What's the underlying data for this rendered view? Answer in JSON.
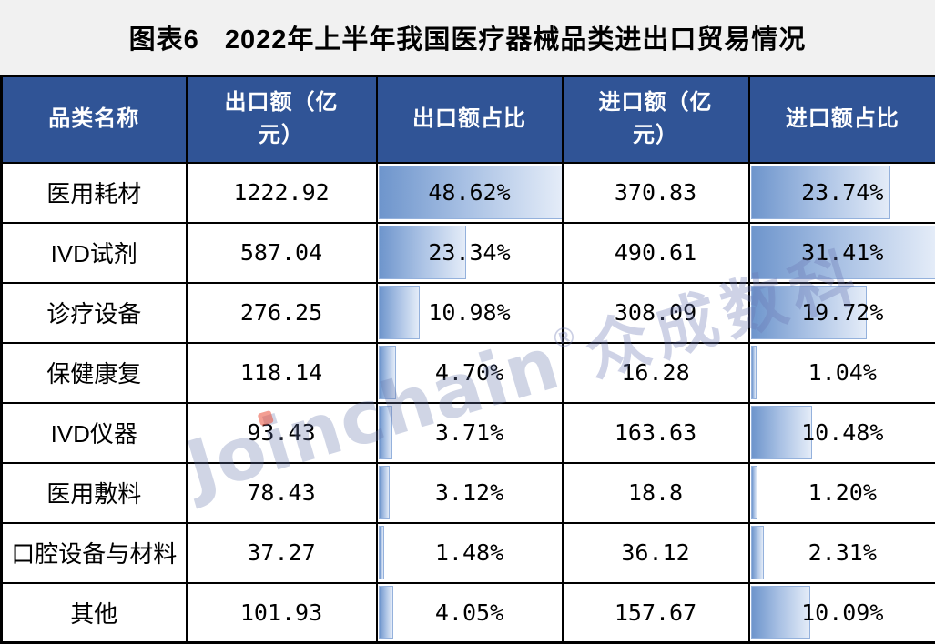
{
  "title": {
    "label": "图表6",
    "text": "2022年上半年我国医疗器械品类进出口贸易情况"
  },
  "table": {
    "headers": [
      "品类名称",
      "出口额（亿\n元）",
      "出口额占比",
      "进口额（亿\n元）",
      "进口额占比"
    ],
    "bar_scale": {
      "export_max": 48.62,
      "import_max": 31.41
    },
    "rows": [
      {
        "category": "医用耗材",
        "export_value": "1222.92",
        "export_share": "48.62%",
        "export_share_value": 48.62,
        "import_value": "370.83",
        "import_share": "23.74%",
        "import_share_value": 23.74
      },
      {
        "category": "IVD试剂",
        "export_value": "587.04",
        "export_share": "23.34%",
        "export_share_value": 23.34,
        "import_value": "490.61",
        "import_share": "31.41%",
        "import_share_value": 31.41
      },
      {
        "category": "诊疗设备",
        "export_value": "276.25",
        "export_share": "10.98%",
        "export_share_value": 10.98,
        "import_value": "308.09",
        "import_share": "19.72%",
        "import_share_value": 19.72
      },
      {
        "category": "保健康复",
        "export_value": "118.14",
        "export_share": "4.70%",
        "export_share_value": 4.7,
        "import_value": "16.28",
        "import_share": "1.04%",
        "import_share_value": 1.04
      },
      {
        "category": "IVD仪器",
        "export_value": "93.43",
        "export_share": "3.71%",
        "export_share_value": 3.71,
        "import_value": "163.63",
        "import_share": "10.48%",
        "import_share_value": 10.48
      },
      {
        "category": "医用敷料",
        "export_value": "78.43",
        "export_share": "3.12%",
        "export_share_value": 3.12,
        "import_value": "18.8",
        "import_share": "1.20%",
        "import_share_value": 1.2
      },
      {
        "category": "口腔设备与材料",
        "export_value": "37.27",
        "export_share": "1.48%",
        "export_share_value": 1.48,
        "import_value": "36.12",
        "import_share": "2.31%",
        "import_share_value": 2.31
      },
      {
        "category": "其他",
        "export_value": "101.93",
        "export_share": "4.05%",
        "export_share_value": 4.05,
        "import_value": "157.67",
        "import_share": "10.09%",
        "import_share_value": 10.09
      }
    ]
  },
  "watermark": {
    "latin": "Joinchain",
    "reg": "®",
    "cjk": "众成数科"
  },
  "colors": {
    "header_bg": "#305496",
    "header_text": "#ffffff",
    "bar_fill_start": "#6e95cc",
    "bar_fill_end": "#e4ecf8",
    "bar_border": "#94b1dc",
    "grid_border": "#000000",
    "page_bg": "#f1f1f1",
    "watermark_text": "#6373aa",
    "watermark_i_dot": "#e94e38"
  },
  "chart_data": {
    "type": "table",
    "title": "图表6 2022年上半年我国医疗器械品类进出口贸易情况",
    "columns": [
      "品类名称",
      "出口额（亿元）",
      "出口额占比",
      "进口额（亿元）",
      "进口额占比"
    ],
    "rows": [
      [
        "医用耗材",
        1222.92,
        "48.62%",
        370.83,
        "23.74%"
      ],
      [
        "IVD试剂",
        587.04,
        "23.34%",
        490.61,
        "31.41%"
      ],
      [
        "诊疗设备",
        276.25,
        "10.98%",
        308.09,
        "19.72%"
      ],
      [
        "保健康复",
        118.14,
        "4.70%",
        16.28,
        "1.04%"
      ],
      [
        "IVD仪器",
        93.43,
        "3.71%",
        163.63,
        "10.48%"
      ],
      [
        "医用敷料",
        78.43,
        "3.12%",
        18.8,
        "1.20%"
      ],
      [
        "口腔设备与材料",
        37.27,
        "1.48%",
        36.12,
        "2.31%"
      ],
      [
        "其他",
        101.93,
        "4.05%",
        157.67,
        "10.09%"
      ]
    ],
    "databar_columns": {
      "出口额占比": {
        "style": "blue-gradient-databar",
        "scale_max": 48.62
      },
      "进口额占比": {
        "style": "blue-gradient-databar",
        "scale_max": 31.41
      }
    },
    "layout": {
      "grid": true,
      "header_style": "dark-blue",
      "watermark": "Joinchain®众成数科"
    }
  }
}
